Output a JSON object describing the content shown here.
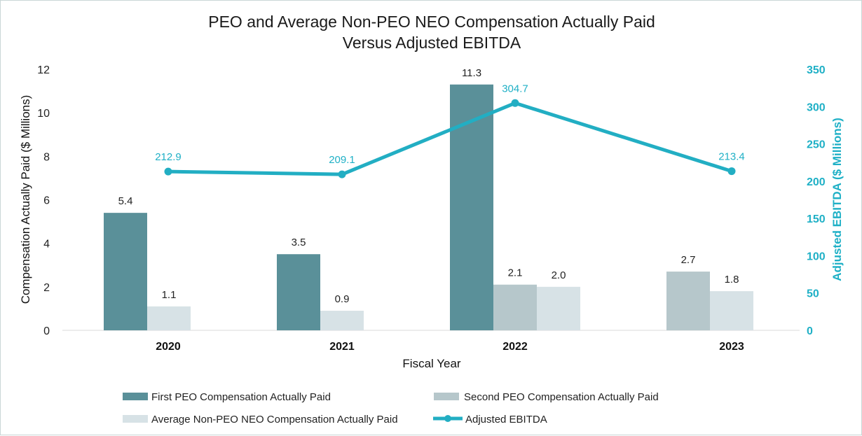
{
  "chart_data": {
    "type": "bar",
    "title_line1": "PEO and Average Non-PEO NEO Compensation Actually Paid",
    "title_line2": "Versus Adjusted EBITDA",
    "xlabel": "Fiscal Year",
    "ylabel": "Compensation Actually Paid ($ Millions)",
    "y2label": "Adjusted EBITDA ($ Millions)",
    "ylim": [
      0,
      12
    ],
    "yticks": [
      0,
      2,
      4,
      6,
      8,
      10,
      12
    ],
    "y2lim": [
      0,
      350
    ],
    "y2ticks": [
      0,
      50,
      100,
      150,
      200,
      250,
      300,
      350
    ],
    "categories": [
      "2020",
      "2021",
      "2022",
      "2023"
    ],
    "series": [
      {
        "name": "First PEO Compensation Actually Paid",
        "kind": "bar",
        "color": "#5a9099",
        "values": [
          5.4,
          3.5,
          11.3,
          null
        ]
      },
      {
        "name": "Second PEO Compensation Actually Paid",
        "kind": "bar",
        "color": "#b6c7cb",
        "values": [
          null,
          null,
          2.1,
          2.7
        ]
      },
      {
        "name": "Average Non-PEO NEO Compensation Actually Paid",
        "kind": "bar",
        "color": "#d7e2e6",
        "values": [
          1.1,
          0.9,
          2.0,
          1.8
        ]
      },
      {
        "name": "Adjusted EBITDA",
        "kind": "line",
        "axis": "right",
        "color": "#22aec3",
        "values": [
          212.9,
          209.1,
          304.7,
          213.4
        ]
      }
    ],
    "legend": "bottom"
  }
}
